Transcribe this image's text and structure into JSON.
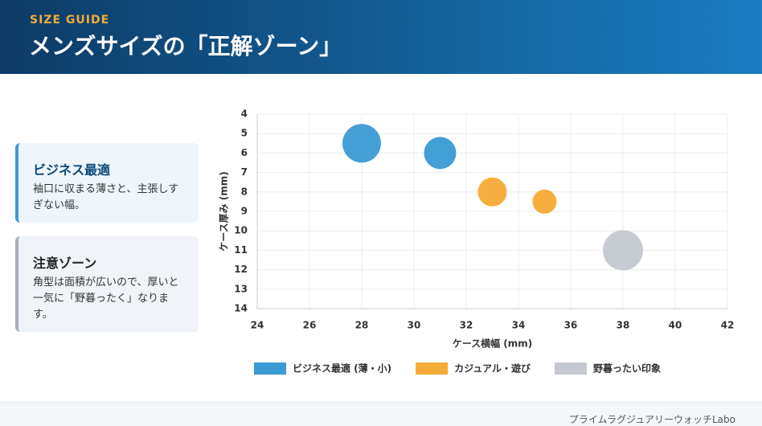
{
  "header": {
    "kicker": "SIZE GUIDE",
    "title": "メンズサイズの「正解ゾーン」"
  },
  "cards": [
    {
      "title": "ビジネス最適",
      "text": "袖口に収まる薄さと、主張しすぎない幅。"
    },
    {
      "title": "注意ゾーン",
      "text": "角型は面積が広いので、厚いと一気に「野暮ったく」なります。"
    }
  ],
  "chart_data": {
    "type": "bubble",
    "x_label": "ケース横幅 (mm)",
    "y_label": "ケース厚み (mm)",
    "xlim": [
      24,
      42
    ],
    "xticks": [
      24,
      26,
      28,
      30,
      32,
      34,
      36,
      38,
      40,
      42
    ],
    "ylim": [
      4,
      14
    ],
    "yticks": [
      4,
      5,
      6,
      7,
      8,
      9,
      10,
      11,
      12,
      13,
      14
    ],
    "y_reversed": true,
    "grid": true,
    "legend": "bottom",
    "series": [
      {
        "name": "ビジネス最適 (薄・小)",
        "color": "#3a9ad4",
        "x": [
          28,
          31
        ],
        "values": [
          5.5,
          6
        ],
        "sizes": [
          24,
          20
        ]
      },
      {
        "name": "カジュアル・遊び",
        "color": "#f5ab35",
        "x": [
          33,
          35
        ],
        "values": [
          8,
          8.5
        ],
        "sizes": [
          18,
          15
        ]
      },
      {
        "name": "野暮ったい印象",
        "color": "#c4c8d0",
        "x": [
          38
        ],
        "values": [
          11
        ],
        "sizes": [
          25
        ]
      }
    ]
  },
  "footer": {
    "text": "プライムラグジュアリーウォッチLabo"
  }
}
